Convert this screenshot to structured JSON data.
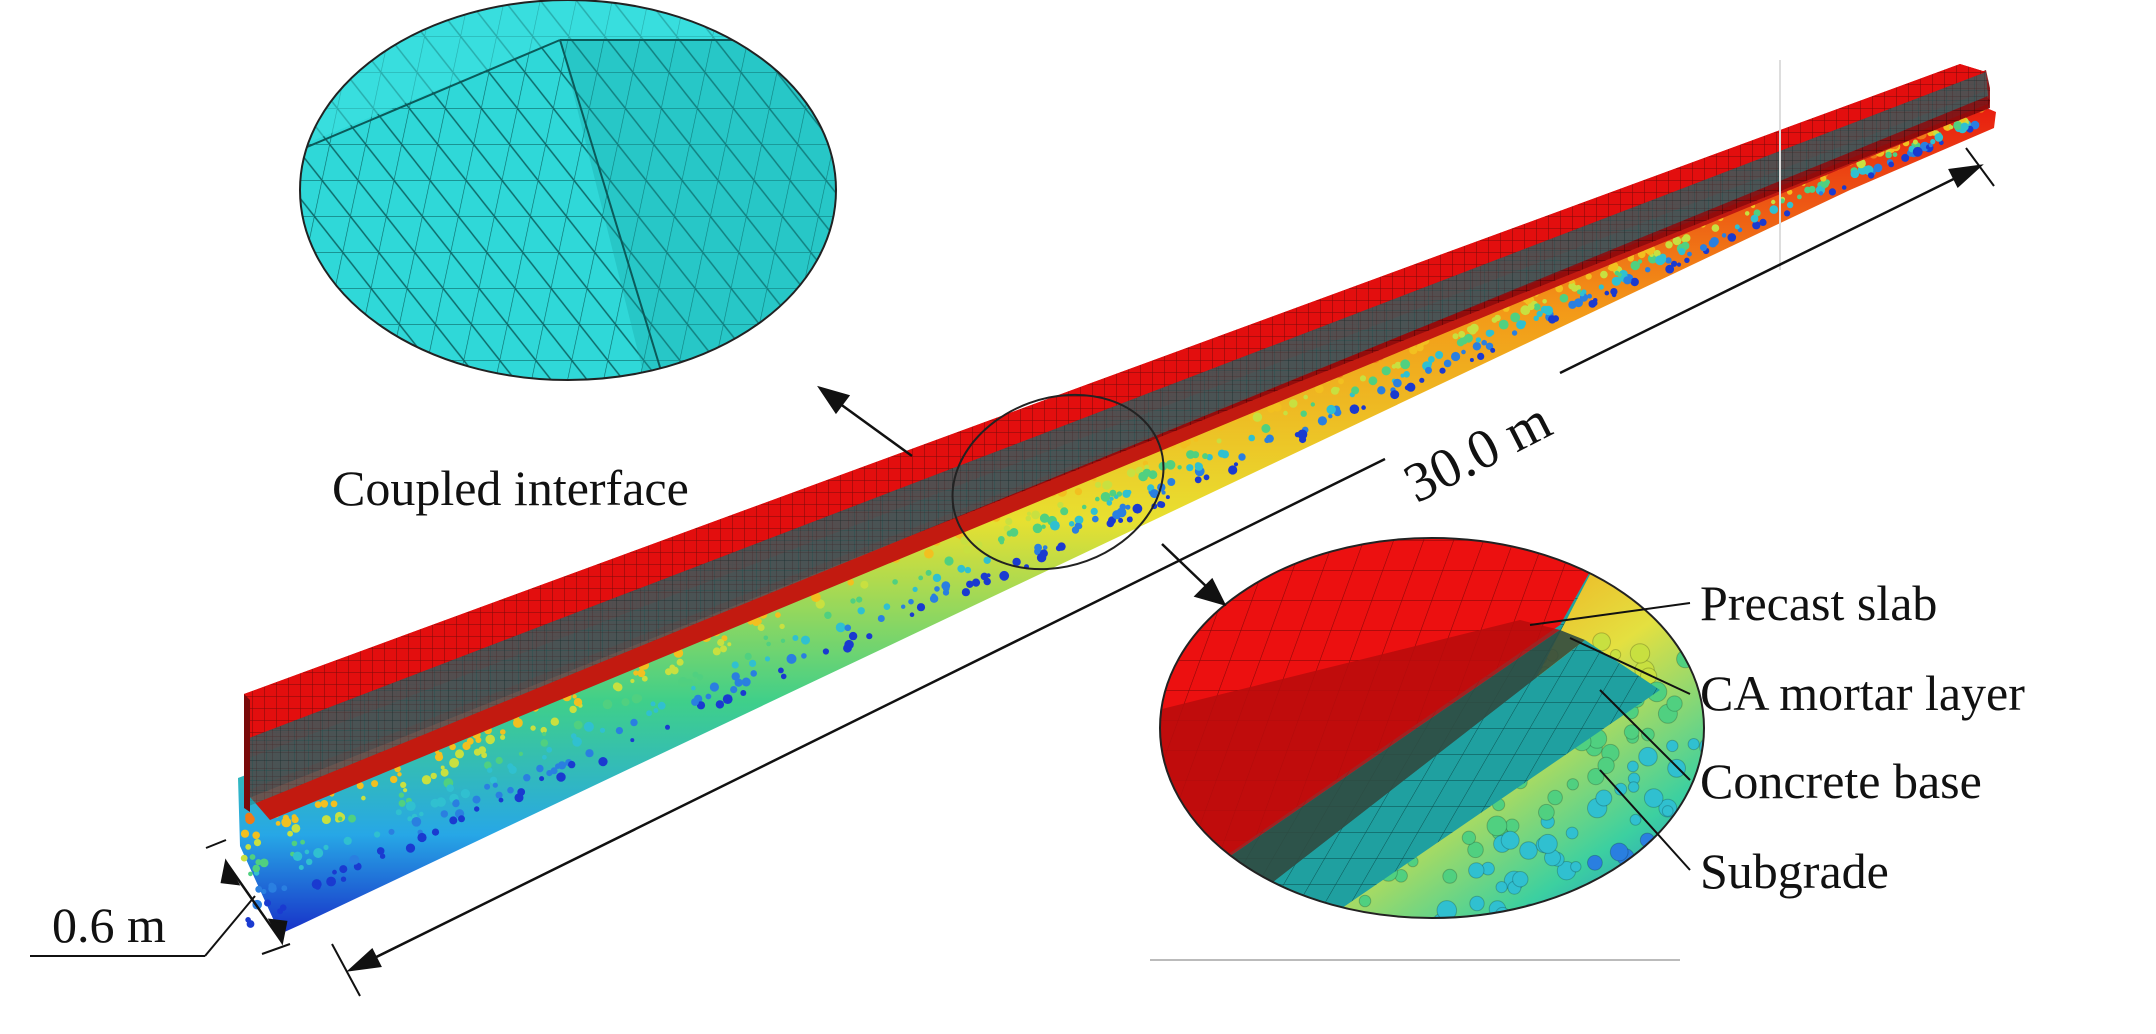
{
  "labels": {
    "coupled_interface": "Coupled interface",
    "length": "30.0 m",
    "width": "0.6 m",
    "precast_slab": "Precast slab",
    "ca_mortar": "CA mortar layer",
    "concrete_base": "Concrete base",
    "subgrade": "Subgrade"
  },
  "colors": {
    "slab": "#e10d0d",
    "slab_dark": "#5a0508",
    "mortar": "#26595a",
    "base": "#198c8c",
    "mesh_zoom": "#29d6d6"
  }
}
